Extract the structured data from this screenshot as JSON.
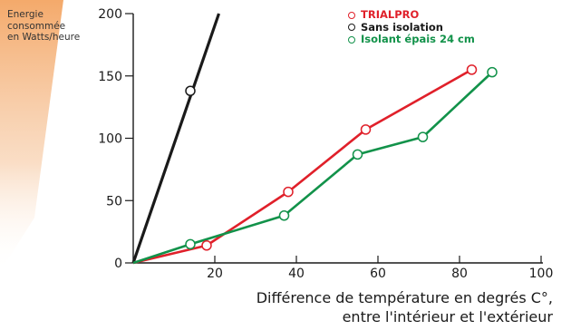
{
  "chart_data": {
    "type": "line",
    "ylabel_lines": [
      "Energie",
      "consommée",
      "en Watts/heure"
    ],
    "xlabel_lines": [
      "Différence de température en degrés C°,",
      "entre l'intérieur et l'extérieur"
    ],
    "xlim": [
      0,
      100
    ],
    "ylim": [
      0,
      200
    ],
    "xticks": [
      0,
      20,
      40,
      60,
      80,
      100
    ],
    "yticks": [
      0,
      50,
      100,
      150,
      200
    ],
    "grid": false,
    "legend_position": "top-right",
    "series": [
      {
        "name": "TRIALPRO",
        "color": "#e0202a",
        "show_line": true,
        "x": [
          0,
          18,
          38,
          57,
          83
        ],
        "y": [
          0,
          14,
          57,
          107,
          155
        ]
      },
      {
        "name": "Sans isolation",
        "color": "#1a1a1a",
        "show_line": false,
        "x": [
          14
        ],
        "y": [
          138
        ]
      },
      {
        "name": "Isolant épais 24 cm",
        "color": "#12924a",
        "show_line": true,
        "x": [
          0,
          14,
          37,
          55,
          71,
          88
        ],
        "y": [
          0,
          15,
          38,
          87,
          101,
          153
        ]
      }
    ],
    "extra_lines": [
      {
        "color": "#1a1a1a",
        "x": [
          0,
          21
        ],
        "y": [
          0,
          200
        ]
      }
    ]
  }
}
